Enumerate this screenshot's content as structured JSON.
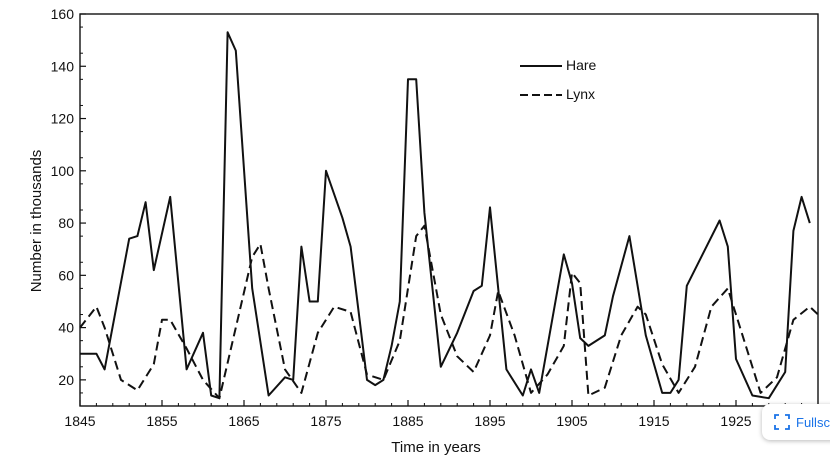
{
  "fullscreen_label": "Fullsc",
  "chart_data": {
    "type": "line",
    "title": "",
    "xlabel": "Time in years",
    "ylabel": "Number in thousands",
    "xlim": [
      1845,
      1935
    ],
    "ylim": [
      10,
      160
    ],
    "x_ticks": [
      1845,
      1855,
      1865,
      1875,
      1885,
      1895,
      1905,
      1915,
      1925
    ],
    "y_ticks": [
      20,
      40,
      60,
      80,
      100,
      120,
      140,
      160
    ],
    "grid": false,
    "legend_position": "top-right",
    "series": [
      {
        "name": "Hare",
        "style": "solid",
        "color": "#111111",
        "x": [
          1845,
          1847,
          1848,
          1851,
          1852,
          1853,
          1854,
          1856,
          1858,
          1860,
          1861,
          1862,
          1863,
          1864,
          1866,
          1868,
          1870,
          1871,
          1872,
          1873,
          1874,
          1875,
          1877,
          1878,
          1880,
          1881,
          1882,
          1883,
          1884,
          1885,
          1886,
          1887,
          1889,
          1891,
          1893,
          1894,
          1895,
          1897,
          1899,
          1900,
          1901,
          1904,
          1905,
          1906,
          1907,
          1909,
          1910,
          1912,
          1914,
          1916,
          1917,
          1918,
          1919,
          1923,
          1924,
          1925,
          1927,
          1929,
          1931,
          1932,
          1933,
          1934
        ],
        "values": [
          30,
          30,
          24,
          74,
          75,
          88,
          62,
          90,
          24,
          38,
          14,
          13,
          153,
          146,
          55,
          14,
          21,
          20,
          71,
          50,
          50,
          100,
          82,
          71,
          20,
          18,
          20,
          33,
          50,
          135,
          135,
          84,
          25,
          38,
          54,
          56,
          86,
          24,
          14,
          24,
          15,
          68,
          57,
          36,
          33,
          37,
          52,
          75,
          37,
          15,
          15,
          20,
          56,
          81,
          71,
          28,
          14,
          13,
          23,
          77,
          90,
          80
        ]
      },
      {
        "name": "Lynx",
        "style": "dashed",
        "color": "#111111",
        "x": [
          1845,
          1847,
          1848,
          1850,
          1852,
          1854,
          1855,
          1856,
          1858,
          1860,
          1862,
          1864,
          1866,
          1867,
          1868,
          1870,
          1872,
          1874,
          1875,
          1876,
          1878,
          1880,
          1882,
          1884,
          1886,
          1887,
          1889,
          1891,
          1893,
          1895,
          1896,
          1898,
          1900,
          1902,
          1904,
          1905,
          1906,
          1907,
          1909,
          1911,
          1913,
          1914,
          1916,
          1918,
          1920,
          1922,
          1924,
          1926,
          1928,
          1930,
          1932,
          1934,
          1935
        ],
        "values": [
          40,
          48,
          40,
          20,
          16,
          26,
          43,
          43,
          32,
          20,
          13,
          40,
          67,
          72,
          55,
          24,
          15,
          38,
          43,
          48,
          46,
          22,
          20,
          35,
          75,
          79,
          45,
          29,
          23,
          37,
          54,
          37,
          15,
          22,
          33,
          61,
          57,
          14,
          17,
          37,
          48,
          45,
          26,
          15,
          25,
          48,
          55,
          35,
          15,
          21,
          43,
          48,
          45
        ]
      }
    ]
  }
}
